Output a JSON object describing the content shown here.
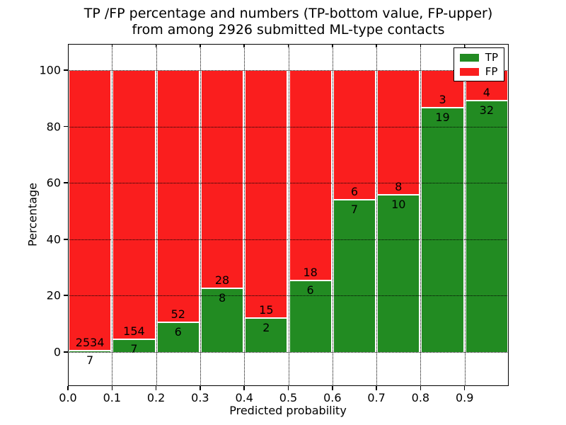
{
  "title": {
    "line1": "TP /FP percentage and numbers (TP-bottom value, FP-upper)",
    "line2": "from among 2926 submitted ML-type contacts"
  },
  "axes": {
    "xlabel": "Predicted probability",
    "ylabel": "Percentage",
    "xtick_labels": [
      "0.0",
      "0.1",
      "0.2",
      "0.3",
      "0.4",
      "0.5",
      "0.6",
      "0.7",
      "0.8",
      "0.9"
    ],
    "ytick_labels": [
      "0",
      "20",
      "40",
      "60",
      "80",
      "100"
    ],
    "ytick_values": [
      0,
      20,
      40,
      60,
      80,
      100
    ],
    "xlim": [
      0.0,
      1.0
    ],
    "ylim": [
      -12.1,
      109.3
    ],
    "grid_style": "dotted"
  },
  "legend": {
    "position": "upper right",
    "items": [
      {
        "label": "TP",
        "color": "#228b22"
      },
      {
        "label": "FP",
        "color": "#fa1e1e"
      }
    ]
  },
  "chart_data": {
    "type": "bar",
    "stacked": true,
    "title": "TP /FP percentage and numbers (TP-bottom value, FP-upper) from among 2926 submitted ML-type contacts",
    "xlabel": "Predicted probability",
    "ylabel": "Percentage",
    "total_contacts": 2926,
    "bin_width": 0.1,
    "categories": [
      "0.0-0.1",
      "0.1-0.2",
      "0.2-0.3",
      "0.3-0.4",
      "0.4-0.5",
      "0.5-0.6",
      "0.6-0.7",
      "0.7-0.8",
      "0.8-0.9",
      "0.9-1.0"
    ],
    "series": [
      {
        "name": "TP",
        "color": "#228b22",
        "counts": [
          7,
          7,
          6,
          8,
          2,
          6,
          7,
          10,
          19,
          32
        ]
      },
      {
        "name": "FP",
        "color": "#fa1e1e",
        "counts": [
          2534,
          154,
          52,
          28,
          15,
          18,
          6,
          8,
          3,
          4
        ]
      }
    ],
    "tp_percent": [
      0.28,
      4.35,
      10.34,
      22.22,
      11.76,
      25.0,
      53.85,
      55.56,
      86.36,
      88.89
    ],
    "ylim": [
      -12.1,
      109.3
    ],
    "grid": true,
    "legend_position": "upper right"
  }
}
